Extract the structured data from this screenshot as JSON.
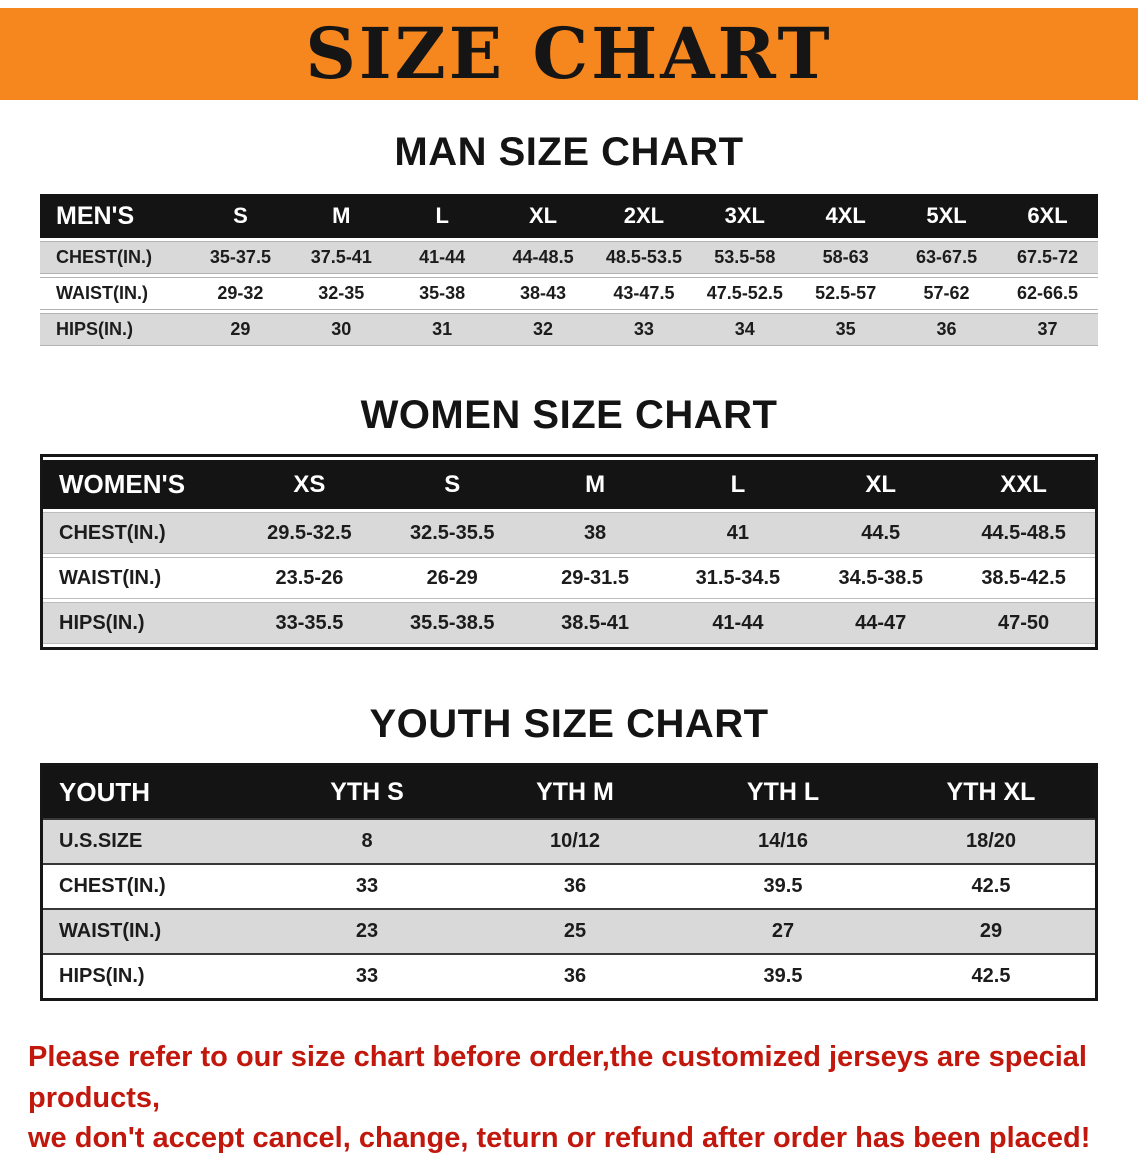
{
  "banner": {
    "title": "SIZE CHART"
  },
  "sections": [
    {
      "heading": "MAN SIZE CHART",
      "table": {
        "header": [
          "MEN'S",
          "S",
          "M",
          "L",
          "XL",
          "2XL",
          "3XL",
          "4XL",
          "5XL",
          "6XL"
        ],
        "rows": [
          [
            "CHEST(IN.)",
            "35-37.5",
            "37.5-41",
            "41-44",
            "44-48.5",
            "48.5-53.5",
            "53.5-58",
            "58-63",
            "63-67.5",
            "67.5-72"
          ],
          [
            "WAIST(IN.)",
            "29-32",
            "32-35",
            "35-38",
            "38-43",
            "43-47.5",
            "47.5-52.5",
            "52.5-57",
            "57-62",
            "62-66.5"
          ],
          [
            "HIPS(IN.)",
            "29",
            "30",
            "31",
            "32",
            "33",
            "34",
            "35",
            "36",
            "37"
          ]
        ]
      }
    },
    {
      "heading": "WOMEN SIZE CHART",
      "table": {
        "header": [
          "WOMEN'S",
          "XS",
          "S",
          "M",
          "L",
          "XL",
          "XXL"
        ],
        "rows": [
          [
            "CHEST(IN.)",
            "29.5-32.5",
            "32.5-35.5",
            "38",
            "41",
            "44.5",
            "44.5-48.5"
          ],
          [
            "WAIST(IN.)",
            "23.5-26",
            "26-29",
            "29-31.5",
            "31.5-34.5",
            "34.5-38.5",
            "38.5-42.5"
          ],
          [
            "HIPS(IN.)",
            "33-35.5",
            "35.5-38.5",
            "38.5-41",
            "41-44",
            "44-47",
            "47-50"
          ]
        ]
      }
    },
    {
      "heading": "YOUTH SIZE CHART",
      "table": {
        "header": [
          "YOUTH",
          "YTH S",
          "YTH M",
          "YTH L",
          "YTH XL"
        ],
        "rows": [
          [
            "U.S.SIZE",
            "8",
            "10/12",
            "14/16",
            "18/20"
          ],
          [
            "CHEST(IN.)",
            "33",
            "36",
            "39.5",
            "42.5"
          ],
          [
            "WAIST(IN.)",
            "23",
            "25",
            "27",
            "29"
          ],
          [
            "HIPS(IN.)",
            "33",
            "36",
            "39.5",
            "42.5"
          ]
        ]
      }
    }
  ],
  "notice": {
    "line1": "Please refer to our size chart before order,the customized jerseys are special products,",
    "line2": "we don't accept cancel, change, teturn or refund after order has been placed!"
  },
  "colors": {
    "banner_bg": "#f6871f",
    "table_header_bg": "#141414",
    "row_alt_bg": "#d9d9d9",
    "notice_text": "#c1170c"
  }
}
